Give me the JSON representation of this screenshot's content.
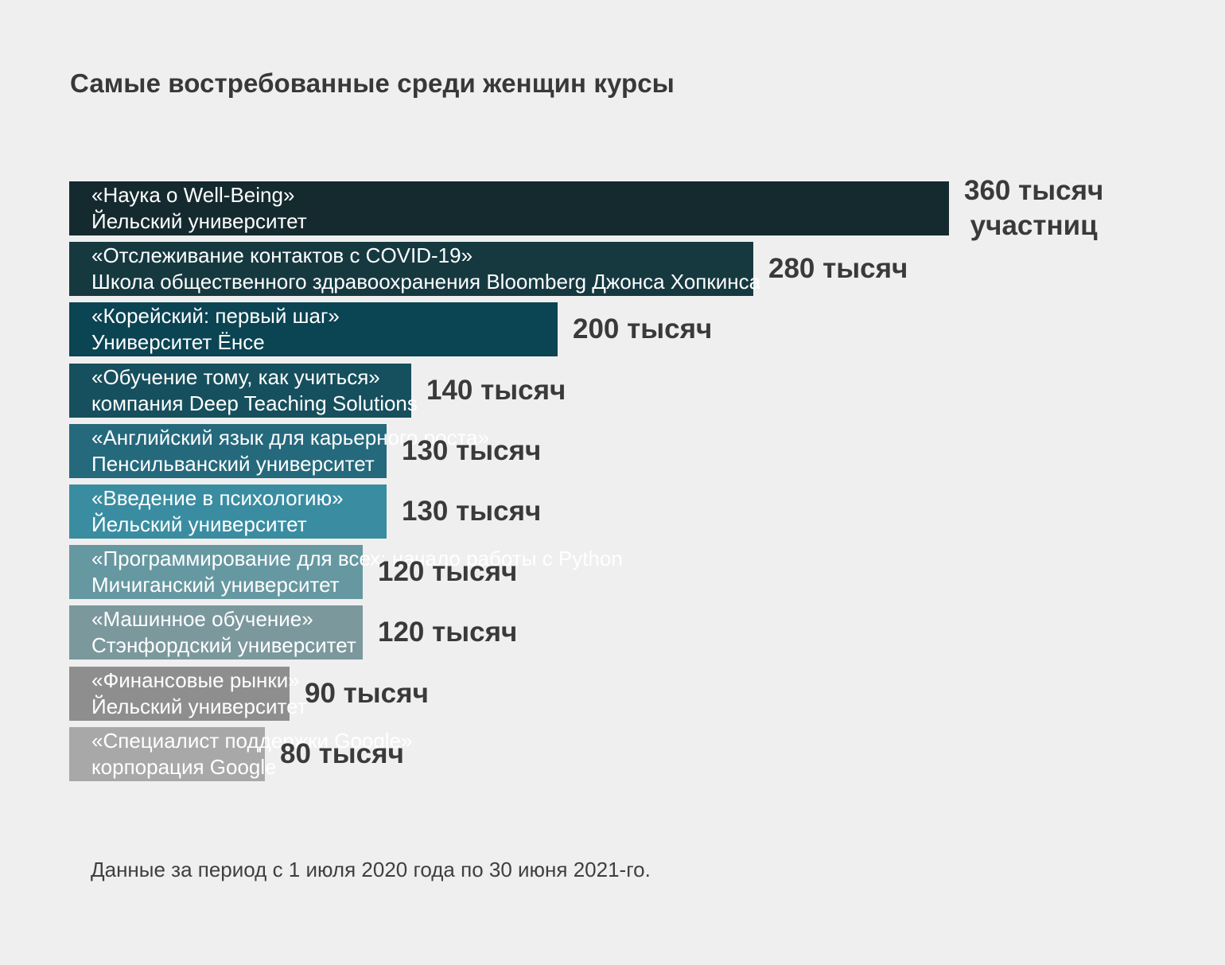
{
  "chart_data": {
    "type": "bar",
    "orientation": "horizontal",
    "title": "Самые востребованные среди женщин курсы",
    "unit": "тысяч участниц",
    "categories": [
      {
        "course": "«Наука о Well-Being»",
        "provider": "Йельский университет"
      },
      {
        "course": "«Отслеживание контактов с COVID-19»",
        "provider": "Школа общественного здравоохранения Bloomberg Джонса Хопкинса"
      },
      {
        "course": "«Корейский: первый шаг»",
        "provider": "Университет Ёнсе"
      },
      {
        "course": "«Обучение тому, как учиться»",
        "provider": "компания Deep Teaching Solutions"
      },
      {
        "course": "«Английский язык для карьерного роста»",
        "provider": "Пенсильванский университет"
      },
      {
        "course": "«Введение в психологию»",
        "provider": "Йельский университет"
      },
      {
        "course": "«Программирование для всех: начало работы с Python",
        "provider": "Мичиганский университет"
      },
      {
        "course": "«Машинное обучение»",
        "provider": "Стэнфордский университет"
      },
      {
        "course": "«Финансовые рынки»",
        "provider": "Йельский университет"
      },
      {
        "course": "«Специалист поддержки Google»",
        "provider": "корпорация Google"
      }
    ],
    "values": [
      360,
      280,
      200,
      140,
      130,
      130,
      120,
      120,
      90,
      80
    ],
    "value_labels": [
      [
        "360 тысяч",
        "участниц"
      ],
      [
        "280 тысяч"
      ],
      [
        "200 тысяч"
      ],
      [
        "140 тысяч"
      ],
      [
        "130 тысяч"
      ],
      [
        "130 тысяч"
      ],
      [
        "120 тысяч"
      ],
      [
        "120 тысяч"
      ],
      [
        "90 тысяч"
      ],
      [
        "80 тысяч"
      ]
    ],
    "colors": [
      "#152a2f",
      "#163940",
      "#0b4453",
      "#164f5d",
      "#25697c",
      "#3a8da1",
      "#6698a1",
      "#7b989d",
      "#8e8e8e",
      "#a8a8a8"
    ],
    "grid": false,
    "legend": "none"
  },
  "footnote": "Данные за период с 1 июля 2020 года по 30 июня 2021-го."
}
